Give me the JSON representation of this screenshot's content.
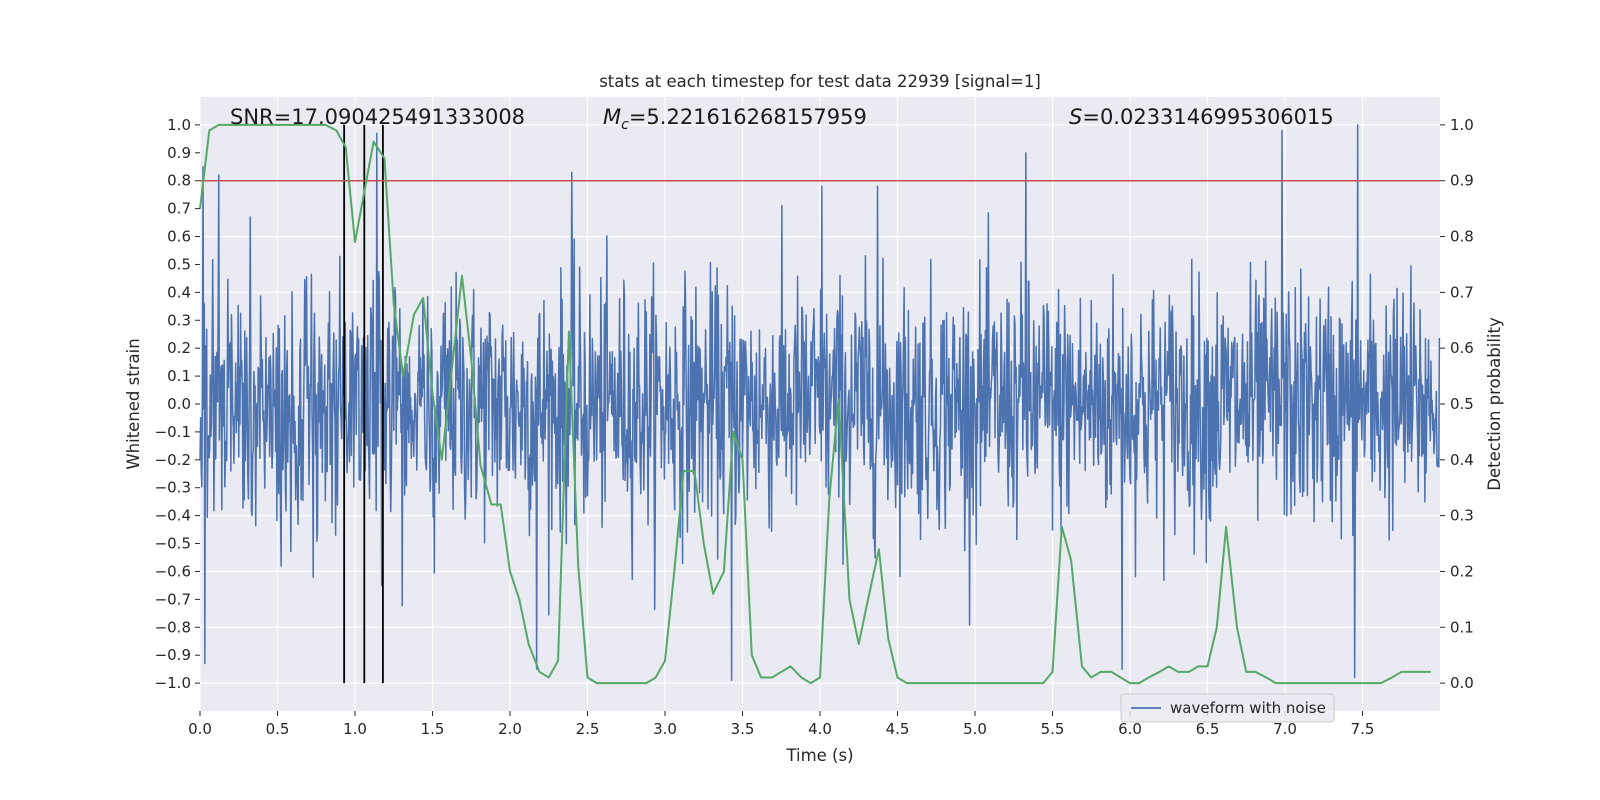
{
  "chart_data": {
    "type": "line",
    "title": "stats at each timestep for test data 22939 [signal=1]",
    "xlabel": "Time (s)",
    "ylabel": "Whitened strain",
    "y2label": "Detection probability",
    "xlim": [
      0.0,
      8.0
    ],
    "ylim": [
      -1.1,
      1.1
    ],
    "y2lim": [
      -0.05,
      1.05
    ],
    "x_ticks": [
      0.0,
      0.5,
      1.0,
      1.5,
      2.0,
      2.5,
      3.0,
      3.5,
      4.0,
      4.5,
      5.0,
      5.5,
      6.0,
      6.5,
      7.0,
      7.5
    ],
    "x_tick_labels": [
      "0.0",
      "0.5",
      "1.0",
      "1.5",
      "2.0",
      "2.5",
      "3.0",
      "3.5",
      "4.0",
      "4.5",
      "5.0",
      "5.5",
      "6.0",
      "6.5",
      "7.0",
      "7.5"
    ],
    "y_ticks": [
      1.0,
      0.9,
      0.8,
      0.7,
      0.6,
      0.5,
      0.4,
      0.3,
      0.2,
      0.1,
      0.0,
      -0.1,
      -0.2,
      -0.3,
      -0.4,
      -0.5,
      -0.6,
      -0.7,
      -0.8,
      -0.9,
      -1.0
    ],
    "y_tick_labels": [
      "1.0",
      "0.9",
      "0.8",
      "0.7",
      "0.6",
      "0.5",
      "0.4",
      "0.3",
      "0.2",
      "0.1",
      "0.0",
      "−0.1",
      "−0.2",
      "−0.3",
      "−0.4",
      "−0.5",
      "−0.6",
      "−0.7",
      "−0.8",
      "−0.9",
      "−1.0"
    ],
    "y2_ticks": [
      1.0,
      0.9,
      0.8,
      0.7,
      0.6,
      0.5,
      0.4,
      0.3,
      0.2,
      0.1,
      0.0
    ],
    "y2_tick_labels": [
      "1.0",
      "0.9",
      "0.8",
      "0.7",
      "0.6",
      "0.5",
      "0.4",
      "0.3",
      "0.2",
      "0.1",
      "0.0"
    ],
    "grid": true,
    "legend": {
      "position": "lower-right",
      "entries": [
        "waveform with noise"
      ]
    },
    "annotations": {
      "snr": "SNR=17.090425491333008",
      "mc_symbol": "M",
      "mc_sub": "c",
      "mc_value": "=5.221616268157959",
      "s_symbol": "S",
      "s_value": "=0.0233146995306015"
    },
    "threshold": {
      "axis": "y2",
      "value": 0.9,
      "color": "#c44e52"
    },
    "event_markers_x": [
      0.93,
      1.06,
      1.18
    ],
    "event_markers_yrange": [
      -1.0,
      1.0
    ],
    "waveform": {
      "name": "waveform with noise",
      "color": "#4c72b0",
      "sample_rate_hz": 256,
      "envelope_typical": 0.35,
      "max": 1.0,
      "min": -0.99,
      "spikes": [
        {
          "x": 0.02,
          "v": 0.85
        },
        {
          "x": 0.03,
          "v": -0.93
        },
        {
          "x": 0.12,
          "v": 0.82
        },
        {
          "x": 2.4,
          "v": 0.83
        },
        {
          "x": 5.33,
          "v": 0.9
        },
        {
          "x": 6.98,
          "v": 0.98
        },
        {
          "x": 7.47,
          "v": 1.0
        },
        {
          "x": 3.43,
          "v": -0.99
        },
        {
          "x": 7.45,
          "v": -0.98
        },
        {
          "x": 5.95,
          "v": -0.95
        },
        {
          "x": 4.01,
          "v": 0.78
        },
        {
          "x": 4.37,
          "v": 0.78
        },
        {
          "x": 1.14,
          "v": 0.97
        },
        {
          "x": 1.17,
          "v": -0.65
        },
        {
          "x": 2.17,
          "v": -0.95
        }
      ]
    },
    "series": [
      {
        "name": "Detection probability",
        "axis": "y2",
        "color": "#55a868",
        "x": [
          0.0,
          0.06,
          0.12,
          0.19,
          0.25,
          0.31,
          0.38,
          0.44,
          0.5,
          0.56,
          0.62,
          0.69,
          0.75,
          0.81,
          0.88,
          0.94,
          1.0,
          1.06,
          1.12,
          1.19,
          1.25,
          1.31,
          1.38,
          1.44,
          1.5,
          1.56,
          1.62,
          1.69,
          1.75,
          1.81,
          1.88,
          1.94,
          2.0,
          2.06,
          2.12,
          2.19,
          2.25,
          2.31,
          2.38,
          2.44,
          2.5,
          2.56,
          2.62,
          2.69,
          2.75,
          2.81,
          2.88,
          2.94,
          3.0,
          3.06,
          3.12,
          3.19,
          3.25,
          3.31,
          3.38,
          3.44,
          3.5,
          3.56,
          3.62,
          3.69,
          3.75,
          3.81,
          3.88,
          3.94,
          4.0,
          4.06,
          4.12,
          4.19,
          4.25,
          4.31,
          4.38,
          4.44,
          4.5,
          4.56,
          4.62,
          4.69,
          4.75,
          4.81,
          4.88,
          4.94,
          5.0,
          5.06,
          5.12,
          5.19,
          5.25,
          5.31,
          5.38,
          5.44,
          5.5,
          5.56,
          5.62,
          5.69,
          5.75,
          5.81,
          5.88,
          5.94,
          6.0,
          6.06,
          6.12,
          6.19,
          6.25,
          6.31,
          6.38,
          6.44,
          6.5,
          6.56,
          6.62,
          6.69,
          6.75,
          6.81,
          6.88,
          6.94,
          7.0,
          7.06,
          7.12,
          7.19,
          7.25,
          7.31,
          7.38,
          7.44,
          7.5,
          7.56,
          7.62,
          7.69,
          7.75,
          7.81,
          7.88,
          7.94
        ],
        "values": [
          0.85,
          0.99,
          1.0,
          1.0,
          1.0,
          1.0,
          1.0,
          1.0,
          1.0,
          1.0,
          1.0,
          1.0,
          1.0,
          1.0,
          0.99,
          0.96,
          0.79,
          0.88,
          0.97,
          0.94,
          0.68,
          0.55,
          0.66,
          0.69,
          0.52,
          0.4,
          0.55,
          0.73,
          0.58,
          0.39,
          0.32,
          0.32,
          0.2,
          0.15,
          0.07,
          0.02,
          0.01,
          0.04,
          0.63,
          0.21,
          0.01,
          0.0,
          0.0,
          0.0,
          0.0,
          0.0,
          0.0,
          0.01,
          0.04,
          0.2,
          0.38,
          0.38,
          0.25,
          0.16,
          0.2,
          0.45,
          0.4,
          0.05,
          0.01,
          0.01,
          0.02,
          0.03,
          0.01,
          0.0,
          0.01,
          0.33,
          0.51,
          0.15,
          0.07,
          0.15,
          0.24,
          0.08,
          0.01,
          0.0,
          0.0,
          0.0,
          0.0,
          0.0,
          0.0,
          0.0,
          0.0,
          0.0,
          0.0,
          0.0,
          0.0,
          0.0,
          0.0,
          0.0,
          0.02,
          0.28,
          0.22,
          0.03,
          0.01,
          0.02,
          0.02,
          0.01,
          0.0,
          0.0,
          0.01,
          0.02,
          0.03,
          0.02,
          0.02,
          0.03,
          0.03,
          0.1,
          0.28,
          0.1,
          0.02,
          0.02,
          0.01,
          0.0,
          0.0,
          0.0,
          0.0,
          0.0,
          0.0,
          0.0,
          0.0,
          0.0,
          0.0,
          0.0,
          0.0,
          0.01,
          0.02,
          0.02,
          0.02,
          0.02
        ]
      }
    ]
  }
}
